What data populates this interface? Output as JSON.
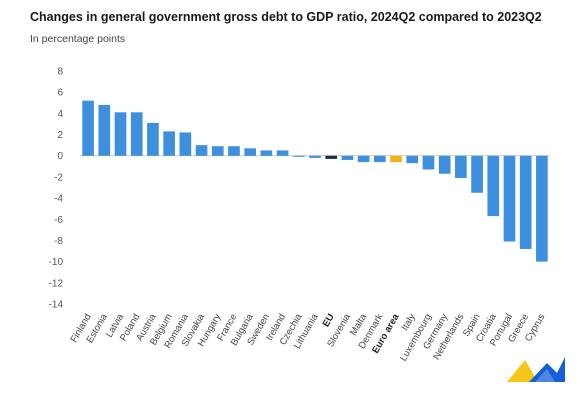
{
  "chart_data": {
    "type": "bar",
    "title": "Changes in general government gross debt to GDP ratio, 2024Q2 compared to 2023Q2",
    "subtitle": "In percentage points",
    "xlabel": "",
    "ylabel": "",
    "ylim": [
      -14,
      8
    ],
    "yticks": [
      8,
      6,
      4,
      2,
      0,
      -2,
      -4,
      -6,
      -8,
      -10,
      -12,
      -14
    ],
    "grid": false,
    "legend": "none",
    "categories": [
      "Finland",
      "Estonia",
      "Latvia",
      "Poland",
      "Austria",
      "Belgium",
      "Romania",
      "Slovakia",
      "Hungary",
      "France",
      "Bulgaria",
      "Sweden",
      "Ireland",
      "Czechia",
      "Lithuania",
      "EU",
      "Slovenia",
      "Malta",
      "Denmark",
      "Euro area",
      "Italy",
      "Luxembourg",
      "Germany",
      "Netherlands",
      "Spain",
      "Croatia",
      "Portugal",
      "Greece",
      "Cyprus"
    ],
    "bold_categories": [
      "EU",
      "Euro area"
    ],
    "values": [
      5.2,
      4.8,
      4.1,
      4.1,
      3.1,
      2.3,
      2.2,
      1.0,
      0.9,
      0.9,
      0.7,
      0.5,
      0.5,
      -0.1,
      -0.2,
      -0.3,
      -0.4,
      -0.6,
      -0.6,
      -0.6,
      -0.7,
      -1.3,
      -1.7,
      -2.1,
      -3.5,
      -5.7,
      -8.1,
      -8.8,
      -10.0
    ],
    "colors": {
      "default": "#3f8fdf",
      "EU": "#1d2a5c",
      "Euro area": "#f2b21a",
      "axis_text": "#555555",
      "zero_line": "#bbbbbb"
    }
  },
  "logo": {
    "name": "eurostat-logo-icon",
    "colors": [
      "#f5c518",
      "#1560d6"
    ]
  }
}
